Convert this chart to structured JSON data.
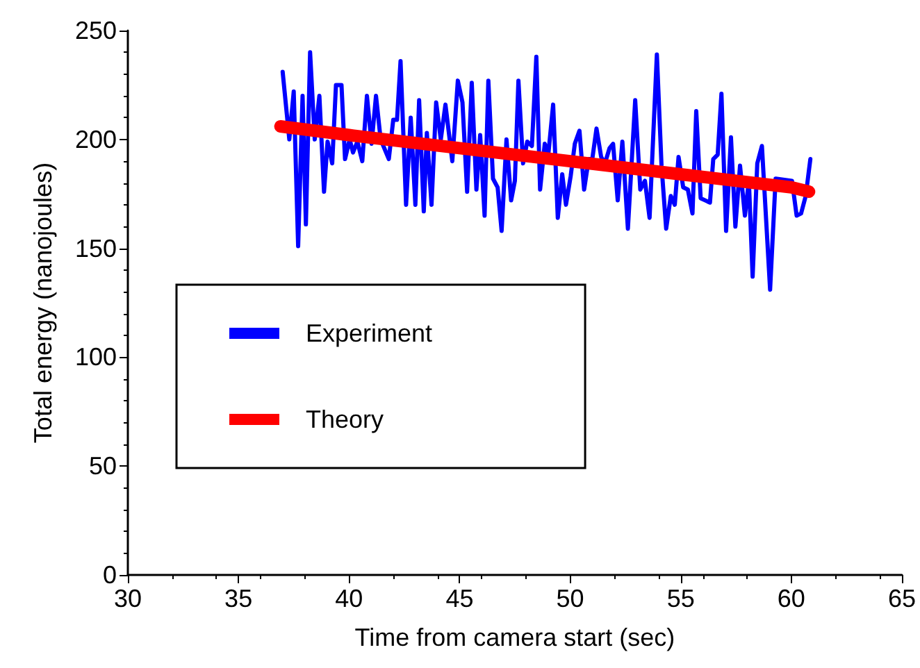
{
  "chart_data": {
    "type": "line",
    "xlabel": "Time from camera start (sec)",
    "ylabel": "Total energy (nanojoules)",
    "xlim": [
      30,
      65
    ],
    "xticks": [
      30,
      35,
      40,
      45,
      50,
      55,
      60,
      65
    ],
    "ylim": [
      0,
      250
    ],
    "yticks": [
      0,
      50,
      100,
      150,
      200,
      250
    ],
    "grid": false,
    "legend": "left",
    "marker": "none",
    "line_style": "solid",
    "series": [
      {
        "name": "Experiment",
        "color": "#0000ff",
        "x": [
          37.0,
          37.3,
          37.5,
          37.7,
          37.9,
          38.05,
          38.24,
          38.45,
          38.66,
          38.87,
          39.03,
          39.24,
          39.41,
          39.66,
          39.82,
          40.03,
          40.18,
          40.38,
          40.6,
          40.81,
          41.02,
          41.22,
          41.43,
          41.8,
          42.0,
          42.17,
          42.33,
          42.58,
          42.79,
          43.0,
          43.17,
          43.38,
          43.52,
          43.73,
          43.94,
          44.15,
          44.36,
          44.67,
          44.92,
          45.13,
          45.34,
          45.55,
          45.76,
          45.93,
          46.13,
          46.3,
          46.51,
          46.72,
          46.9,
          47.12,
          47.33,
          47.5,
          47.66,
          47.87,
          48.06,
          48.27,
          48.47,
          48.64,
          48.85,
          49.02,
          49.23,
          49.44,
          49.64,
          49.81,
          50.02,
          50.21,
          50.42,
          50.63,
          50.84,
          51.0,
          51.19,
          51.4,
          51.57,
          51.78,
          51.94,
          52.15,
          52.36,
          52.61,
          52.94,
          53.17,
          53.38,
          53.59,
          53.92,
          54.13,
          54.34,
          54.55,
          54.73,
          54.9,
          55.11,
          55.32,
          55.53,
          55.7,
          55.9,
          56.11,
          56.32,
          56.47,
          56.67,
          56.84,
          57.05,
          57.27,
          57.47,
          57.68,
          57.9,
          58.08,
          58.25,
          58.46,
          58.67,
          59.04,
          59.29,
          60.03,
          60.24,
          60.44,
          60.65,
          60.86
        ],
        "values": [
          231,
          200,
          222,
          151,
          220,
          161,
          240,
          200,
          220,
          176,
          199,
          189,
          225,
          225,
          191,
          200,
          194,
          199,
          190,
          220,
          198,
          220,
          200,
          191,
          209,
          209,
          236,
          170,
          210,
          170,
          218,
          167,
          203,
          170,
          217,
          200,
          216,
          190,
          227,
          217,
          176,
          226,
          177,
          202,
          165,
          227,
          182,
          178,
          158,
          200,
          172,
          181,
          227,
          189,
          199,
          197,
          238,
          177,
          198,
          194,
          216,
          164,
          184,
          170,
          183,
          198,
          204,
          177,
          191,
          191,
          205,
          192,
          189,
          196,
          198,
          172,
          199,
          159,
          218,
          177,
          181,
          164,
          239,
          188,
          159,
          174,
          170,
          192,
          178,
          177,
          166,
          213,
          173,
          172,
          171,
          191,
          193,
          221,
          158,
          201,
          160,
          188,
          165,
          181,
          137,
          189,
          197,
          131,
          182,
          181,
          165,
          166,
          174,
          191
        ]
      },
      {
        "name": "Theory",
        "color": "#ff0000",
        "x": [
          36.9,
          40,
          45,
          50,
          55,
          60,
          60.8
        ],
        "values": [
          206,
          202,
          196,
          190,
          184,
          178,
          176
        ]
      }
    ]
  }
}
